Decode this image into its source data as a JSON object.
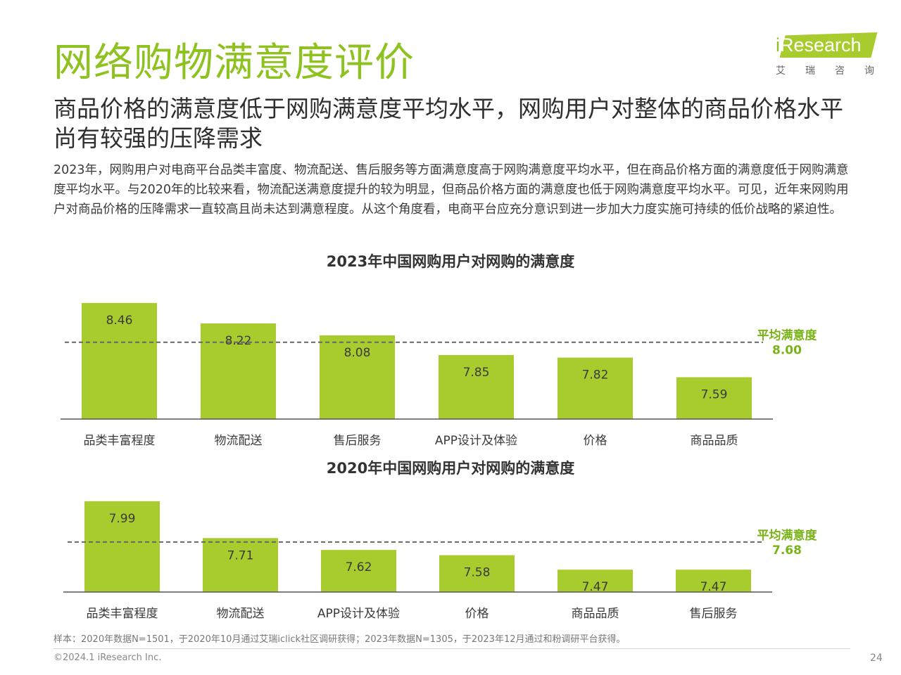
{
  "page": {
    "title": "网络购物满意度评价",
    "subtitle": "商品价格的满意度低于网购满意度平均水平，网购用户对整体的商品价格水平尚有较强的压降需求",
    "body": "2023年，网购用户对电商平台品类丰富度、物流配送、售后服务等方面满意度高于网购满意度平均水平，但在商品价格方面的满意度低于网购满意度平均水平。与2020年的比较来看，物流配送满意度提升的较为明显，但商品价格方面的满意度也低于网购满意度平均水平。可见，近年来网购用户对商品价格的压降需求一直较高且尚未达到满意程度。从这个角度看，电商平台应充分意识到进一步加大力度实施可持续的低价战略的紧迫性。",
    "footnote": "样本：2020年数据N=1501，于2020年10月通过艾瑞iclick社区调研获得；2023年数据N=1305，于2023年12月通过和粉调研平台获得。",
    "copyright": "©2024.1 iResearch Inc.",
    "page_number": "24"
  },
  "logo": {
    "i": "i",
    "brand": "Research",
    "subtitle": "艾瑞咨询"
  },
  "colors": {
    "accent": "#8dc21f",
    "bar": "#a8cc2e",
    "avg_label": "#7ab317"
  },
  "chart_data": [
    {
      "type": "bar",
      "title": "2023年中国网购用户对网购的满意度",
      "categories": [
        "品类丰富程度",
        "物流配送",
        "售后服务",
        "APP设计及体验",
        "价格",
        "商品品质"
      ],
      "values": [
        8.46,
        8.22,
        8.08,
        7.85,
        7.82,
        7.59
      ],
      "average": {
        "label": "平均满意度",
        "value": 8.0,
        "display": "8.00"
      },
      "ylim": [
        7.1,
        8.5
      ],
      "grid": false
    },
    {
      "type": "bar",
      "title": "2020年中国网购用户对网购的满意度",
      "categories": [
        "品类丰富程度",
        "物流配送",
        "APP设计及体验",
        "价格",
        "商品品质",
        "售后服务"
      ],
      "values": [
        7.99,
        7.71,
        7.62,
        7.58,
        7.47,
        7.47
      ],
      "average": {
        "label": "平均满意度",
        "value": 7.68,
        "display": "7.68"
      },
      "ylim": [
        7.3,
        8.0
      ],
      "grid": false
    }
  ]
}
